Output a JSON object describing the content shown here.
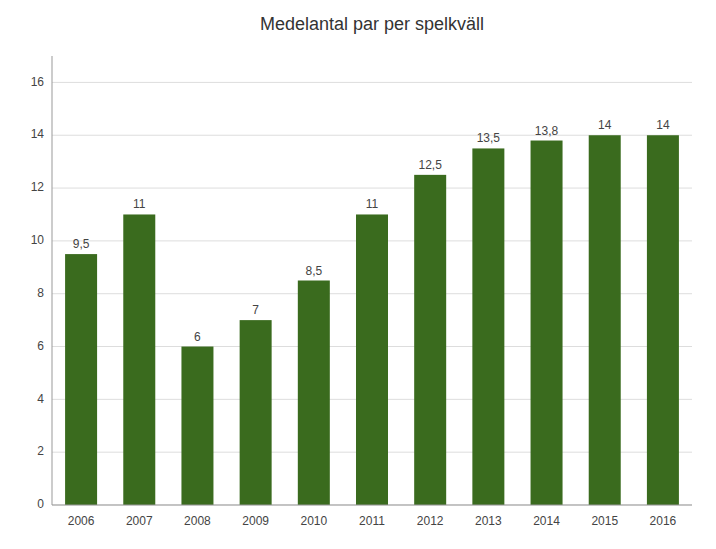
{
  "chart_data": {
    "type": "bar",
    "title": "Medelantal par per spelkväll",
    "categories": [
      "2006",
      "2007",
      "2008",
      "2009",
      "2010",
      "2011",
      "2012",
      "2013",
      "2014",
      "2015",
      "2016"
    ],
    "values": [
      9.5,
      11,
      6,
      7,
      8.5,
      11,
      12.5,
      13.5,
      13.8,
      14,
      14
    ],
    "value_labels": [
      "9,5",
      "11",
      "6",
      "7",
      "8,5",
      "11",
      "12,5",
      "13,5",
      "13,8",
      "14",
      "14"
    ],
    "data_labels": true,
    "color": "#3a6b1e",
    "ylim": [
      0,
      17
    ],
    "yticks": [
      0,
      2,
      4,
      6,
      8,
      10,
      12,
      14,
      16
    ],
    "grid": true
  }
}
